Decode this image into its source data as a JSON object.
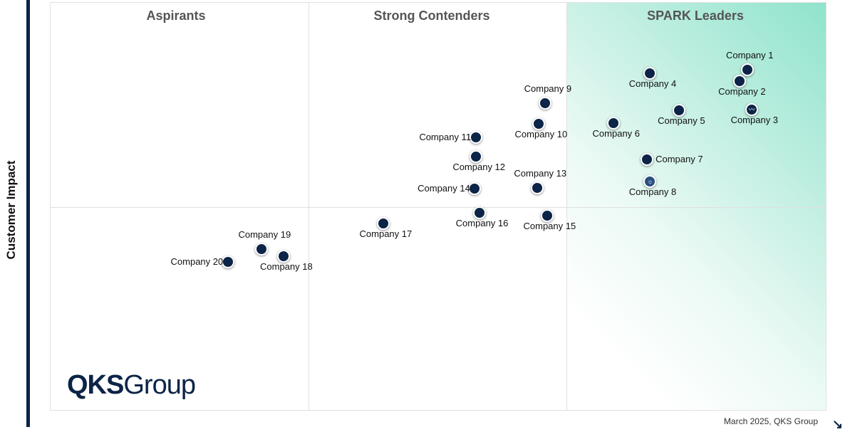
{
  "chart_data": {
    "type": "scatter",
    "title": "",
    "ylabel": "Customer Impact",
    "xlabel": "",
    "xlim": [
      0,
      100
    ],
    "ylim": [
      0,
      100
    ],
    "grid": "quadrant dividers",
    "quadrants": [
      "Aspirants",
      "Strong Contenders",
      "SPARK Leaders"
    ],
    "accent_color": "#0b2447",
    "leader_gradient_color": "#8fe3cc",
    "points": [
      {
        "name": "Company 1",
        "x": 89.7,
        "y": 83.6,
        "icon": "dot"
      },
      {
        "name": "Company 2",
        "x": 88.7,
        "y": 80.8,
        "icon": "dot"
      },
      {
        "name": "Company 3",
        "x": 90.3,
        "y": 73.9,
        "icon": "trend-icon"
      },
      {
        "name": "Company 4",
        "x": 77.2,
        "y": 82.8,
        "icon": "dot"
      },
      {
        "name": "Company 5",
        "x": 80.9,
        "y": 73.7,
        "icon": "dot"
      },
      {
        "name": "Company 6",
        "x": 72.5,
        "y": 70.6,
        "icon": "dot"
      },
      {
        "name": "Company 7",
        "x": 76.8,
        "y": 61.7,
        "icon": "dot"
      },
      {
        "name": "Company 8",
        "x": 77.2,
        "y": 56.3,
        "icon": "lightbulb-icon"
      },
      {
        "name": "Company 9",
        "x": 63.7,
        "y": 75.4,
        "icon": "dot"
      },
      {
        "name": "Company 10",
        "x": 62.8,
        "y": 70.4,
        "icon": "dot"
      },
      {
        "name": "Company 11",
        "x": 54.8,
        "y": 67.1,
        "icon": "dot"
      },
      {
        "name": "Company 12",
        "x": 54.8,
        "y": 62.4,
        "icon": "dot"
      },
      {
        "name": "Company 13",
        "x": 62.7,
        "y": 54.7,
        "icon": "dot"
      },
      {
        "name": "Company 14",
        "x": 54.6,
        "y": 54.5,
        "icon": "dot"
      },
      {
        "name": "Company 15",
        "x": 63.9,
        "y": 47.9,
        "icon": "dot"
      },
      {
        "name": "Company 16",
        "x": 55.2,
        "y": 48.6,
        "icon": "dot"
      },
      {
        "name": "Company 17",
        "x": 42.8,
        "y": 46.0,
        "icon": "dot"
      },
      {
        "name": "Company 18",
        "x": 30.0,
        "y": 38.0,
        "icon": "dot"
      },
      {
        "name": "Company 19",
        "x": 27.2,
        "y": 39.7,
        "icon": "dot"
      },
      {
        "name": "Company 20",
        "x": 22.8,
        "y": 36.6,
        "icon": "dot"
      }
    ]
  },
  "logo": {
    "bold": "QKS",
    "regular": "Group"
  },
  "footer": "March 2025, QKS Group"
}
